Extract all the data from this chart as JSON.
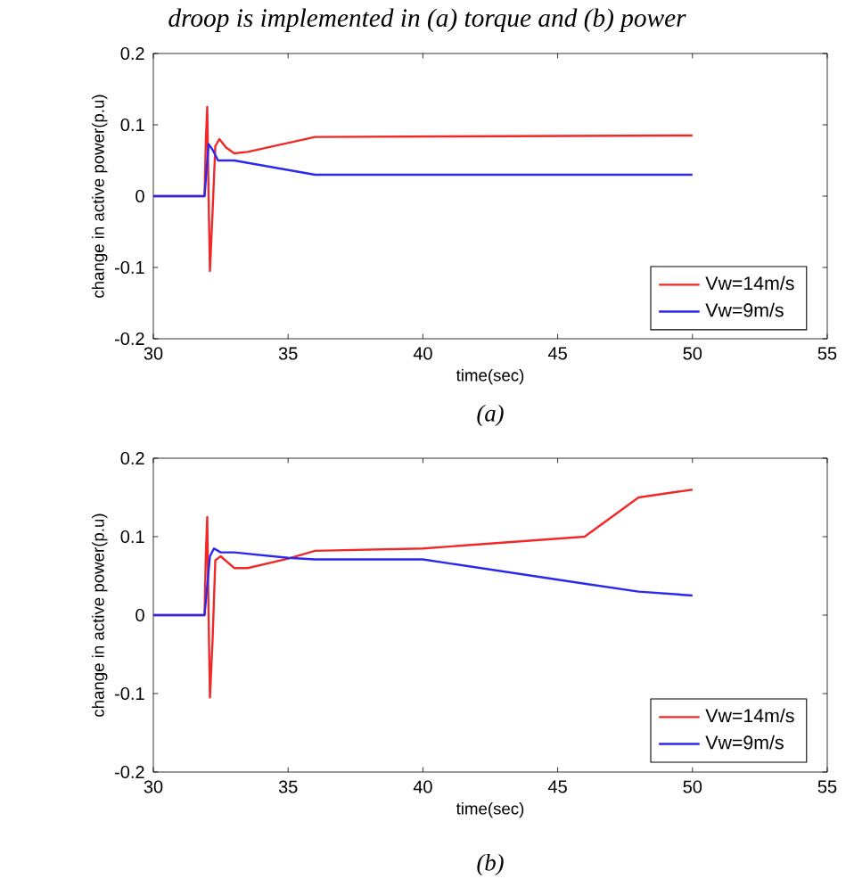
{
  "chart_data": [
    {
      "type": "line",
      "title": "droop is implemented in (a) torque and (b) power",
      "xlabel": "time(sec)",
      "ylabel": "change in active power(p.u)",
      "annotations": [
        "(a)"
      ],
      "xlim": [
        30,
        55
      ],
      "xticks": [
        30,
        35,
        40,
        45,
        50,
        55
      ],
      "ylim": [
        -0.2,
        0.2
      ],
      "yticks": [
        -0.2,
        -0.1,
        0,
        0.1,
        0.2
      ],
      "legend": "bottom right",
      "grid": false,
      "marker": "none",
      "line_style": "solid",
      "series": [
        {
          "name": "Vw=14m/s",
          "color": "#f02828",
          "x": [
            30,
            31.9,
            31.95,
            32.0,
            32.05,
            32.1,
            32.2,
            32.3,
            32.45,
            32.7,
            33,
            33.5,
            36,
            50
          ],
          "values": [
            0,
            0,
            0.08,
            0.125,
            0,
            -0.105,
            -0.02,
            0.07,
            0.08,
            0.068,
            0.06,
            0.062,
            0.083,
            0.085
          ]
        },
        {
          "name": "Vw=9m/s",
          "color": "#2828f0",
          "x": [
            30,
            31.9,
            32.05,
            32.2,
            32.4,
            33,
            36,
            50
          ],
          "values": [
            0,
            0,
            0.073,
            0.065,
            0.05,
            0.05,
            0.03,
            0.03
          ]
        }
      ]
    },
    {
      "type": "line",
      "xlabel": "time(sec)",
      "ylabel": "change in active power(p.u)",
      "annotations": [
        "(b)"
      ],
      "xlim": [
        30,
        55
      ],
      "xticks": [
        30,
        35,
        40,
        45,
        50,
        55
      ],
      "ylim": [
        -0.2,
        0.2
      ],
      "yticks": [
        -0.2,
        -0.1,
        0,
        0.1,
        0.2
      ],
      "legend": "bottom right",
      "grid": false,
      "marker": "none",
      "line_style": "solid",
      "series": [
        {
          "name": "Vw=14m/s",
          "color": "#f02828",
          "x": [
            30,
            31.9,
            31.95,
            32.0,
            32.05,
            32.1,
            32.2,
            32.3,
            32.5,
            33,
            33.5,
            35,
            36,
            40,
            46,
            48,
            50
          ],
          "values": [
            0,
            0,
            0.08,
            0.125,
            0,
            -0.105,
            -0.03,
            0.07,
            0.075,
            0.06,
            0.06,
            0.072,
            0.082,
            0.085,
            0.1,
            0.15,
            0.16
          ]
        },
        {
          "name": "Vw=9m/s",
          "color": "#2828f0",
          "x": [
            30,
            31.9,
            32.1,
            32.25,
            32.5,
            33,
            35,
            36,
            40,
            46,
            48,
            50
          ],
          "values": [
            0,
            0,
            0.075,
            0.085,
            0.08,
            0.08,
            0.073,
            0.071,
            0.071,
            0.04,
            0.03,
            0.025
          ]
        }
      ]
    }
  ]
}
